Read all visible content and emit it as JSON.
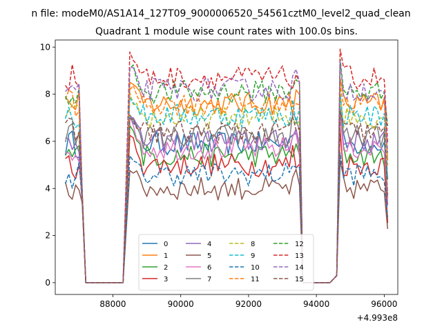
{
  "chart_data": {
    "type": "line",
    "suptitle": "n file: modeM0/AS1A14_127T09_9000006520_54561cztM0_level2_quad_clean",
    "title": "Quadrant 1 module wise count rates with 100.0s bins.",
    "xlabel": "",
    "ylabel": "",
    "offset_text": "+4.993e8",
    "xlim": [
      86300,
      96400
    ],
    "ylim": [
      -0.5,
      10.3
    ],
    "x_ticks": [
      88000,
      90000,
      92000,
      94000,
      96000
    ],
    "x_tick_labels": [
      "88000",
      "90000",
      "92000",
      "94000",
      "96000"
    ],
    "y_ticks": [
      0,
      2,
      4,
      6,
      8,
      10
    ],
    "y_tick_labels": [
      "0",
      "2",
      "4",
      "6",
      "8",
      "10"
    ],
    "legend_location": "lower center",
    "legend_columns": 4,
    "segments": [
      {
        "start": 86600,
        "end": 87000,
        "step": 100
      },
      {
        "start": 88500,
        "end": 93500,
        "step": 100
      },
      {
        "start": 94700,
        "end": 96100,
        "step": 100
      }
    ],
    "gap_points": [
      87200,
      87300,
      87400,
      87500,
      87600,
      87700,
      87800,
      87900,
      88000,
      88100,
      88200,
      88300
    ],
    "series": [
      {
        "name": "0",
        "color": "#1f77b4",
        "dash": "solid",
        "level": 5.9,
        "peak": 7.0
      },
      {
        "name": "1",
        "color": "#ff7f0e",
        "dash": "solid",
        "level": 7.6,
        "peak": 8.6
      },
      {
        "name": "2",
        "color": "#2ca02c",
        "dash": "solid",
        "level": 5.4,
        "peak": 6.9
      },
      {
        "name": "3",
        "color": "#d62728",
        "dash": "solid",
        "level": 5.0,
        "peak": 6.3
      },
      {
        "name": "4",
        "color": "#9467bd",
        "dash": "solid",
        "level": 6.0,
        "peak": 7.2
      },
      {
        "name": "5",
        "color": "#8c564b",
        "dash": "solid",
        "level": 4.0,
        "peak": 5.0
      },
      {
        "name": "6",
        "color": "#e377c2",
        "dash": "solid",
        "level": 5.7,
        "peak": 6.9
      },
      {
        "name": "7",
        "color": "#7f7f7f",
        "dash": "solid",
        "level": 6.2,
        "peak": 7.3
      },
      {
        "name": "8",
        "color": "#bcbd22",
        "dash": "dashed",
        "level": 7.0,
        "peak": 8.0
      },
      {
        "name": "9",
        "color": "#17becf",
        "dash": "dashed",
        "level": 7.1,
        "peak": 7.9
      },
      {
        "name": "10",
        "color": "#1f77b4",
        "dash": "dashed",
        "level": 4.6,
        "peak": 5.3
      },
      {
        "name": "11",
        "color": "#ff7f0e",
        "dash": "dashed",
        "level": 7.6,
        "peak": 8.3
      },
      {
        "name": "12",
        "color": "#2ca02c",
        "dash": "dashed",
        "level": 8.1,
        "peak": 9.3
      },
      {
        "name": "13",
        "color": "#d62728",
        "dash": "dashed",
        "level": 8.7,
        "peak": 9.8
      },
      {
        "name": "14",
        "color": "#9467bd",
        "dash": "dashed",
        "level": 8.2,
        "peak": 9.1
      },
      {
        "name": "15",
        "color": "#8c564b",
        "dash": "dashed",
        "level": 6.4,
        "peak": 7.1
      }
    ]
  }
}
